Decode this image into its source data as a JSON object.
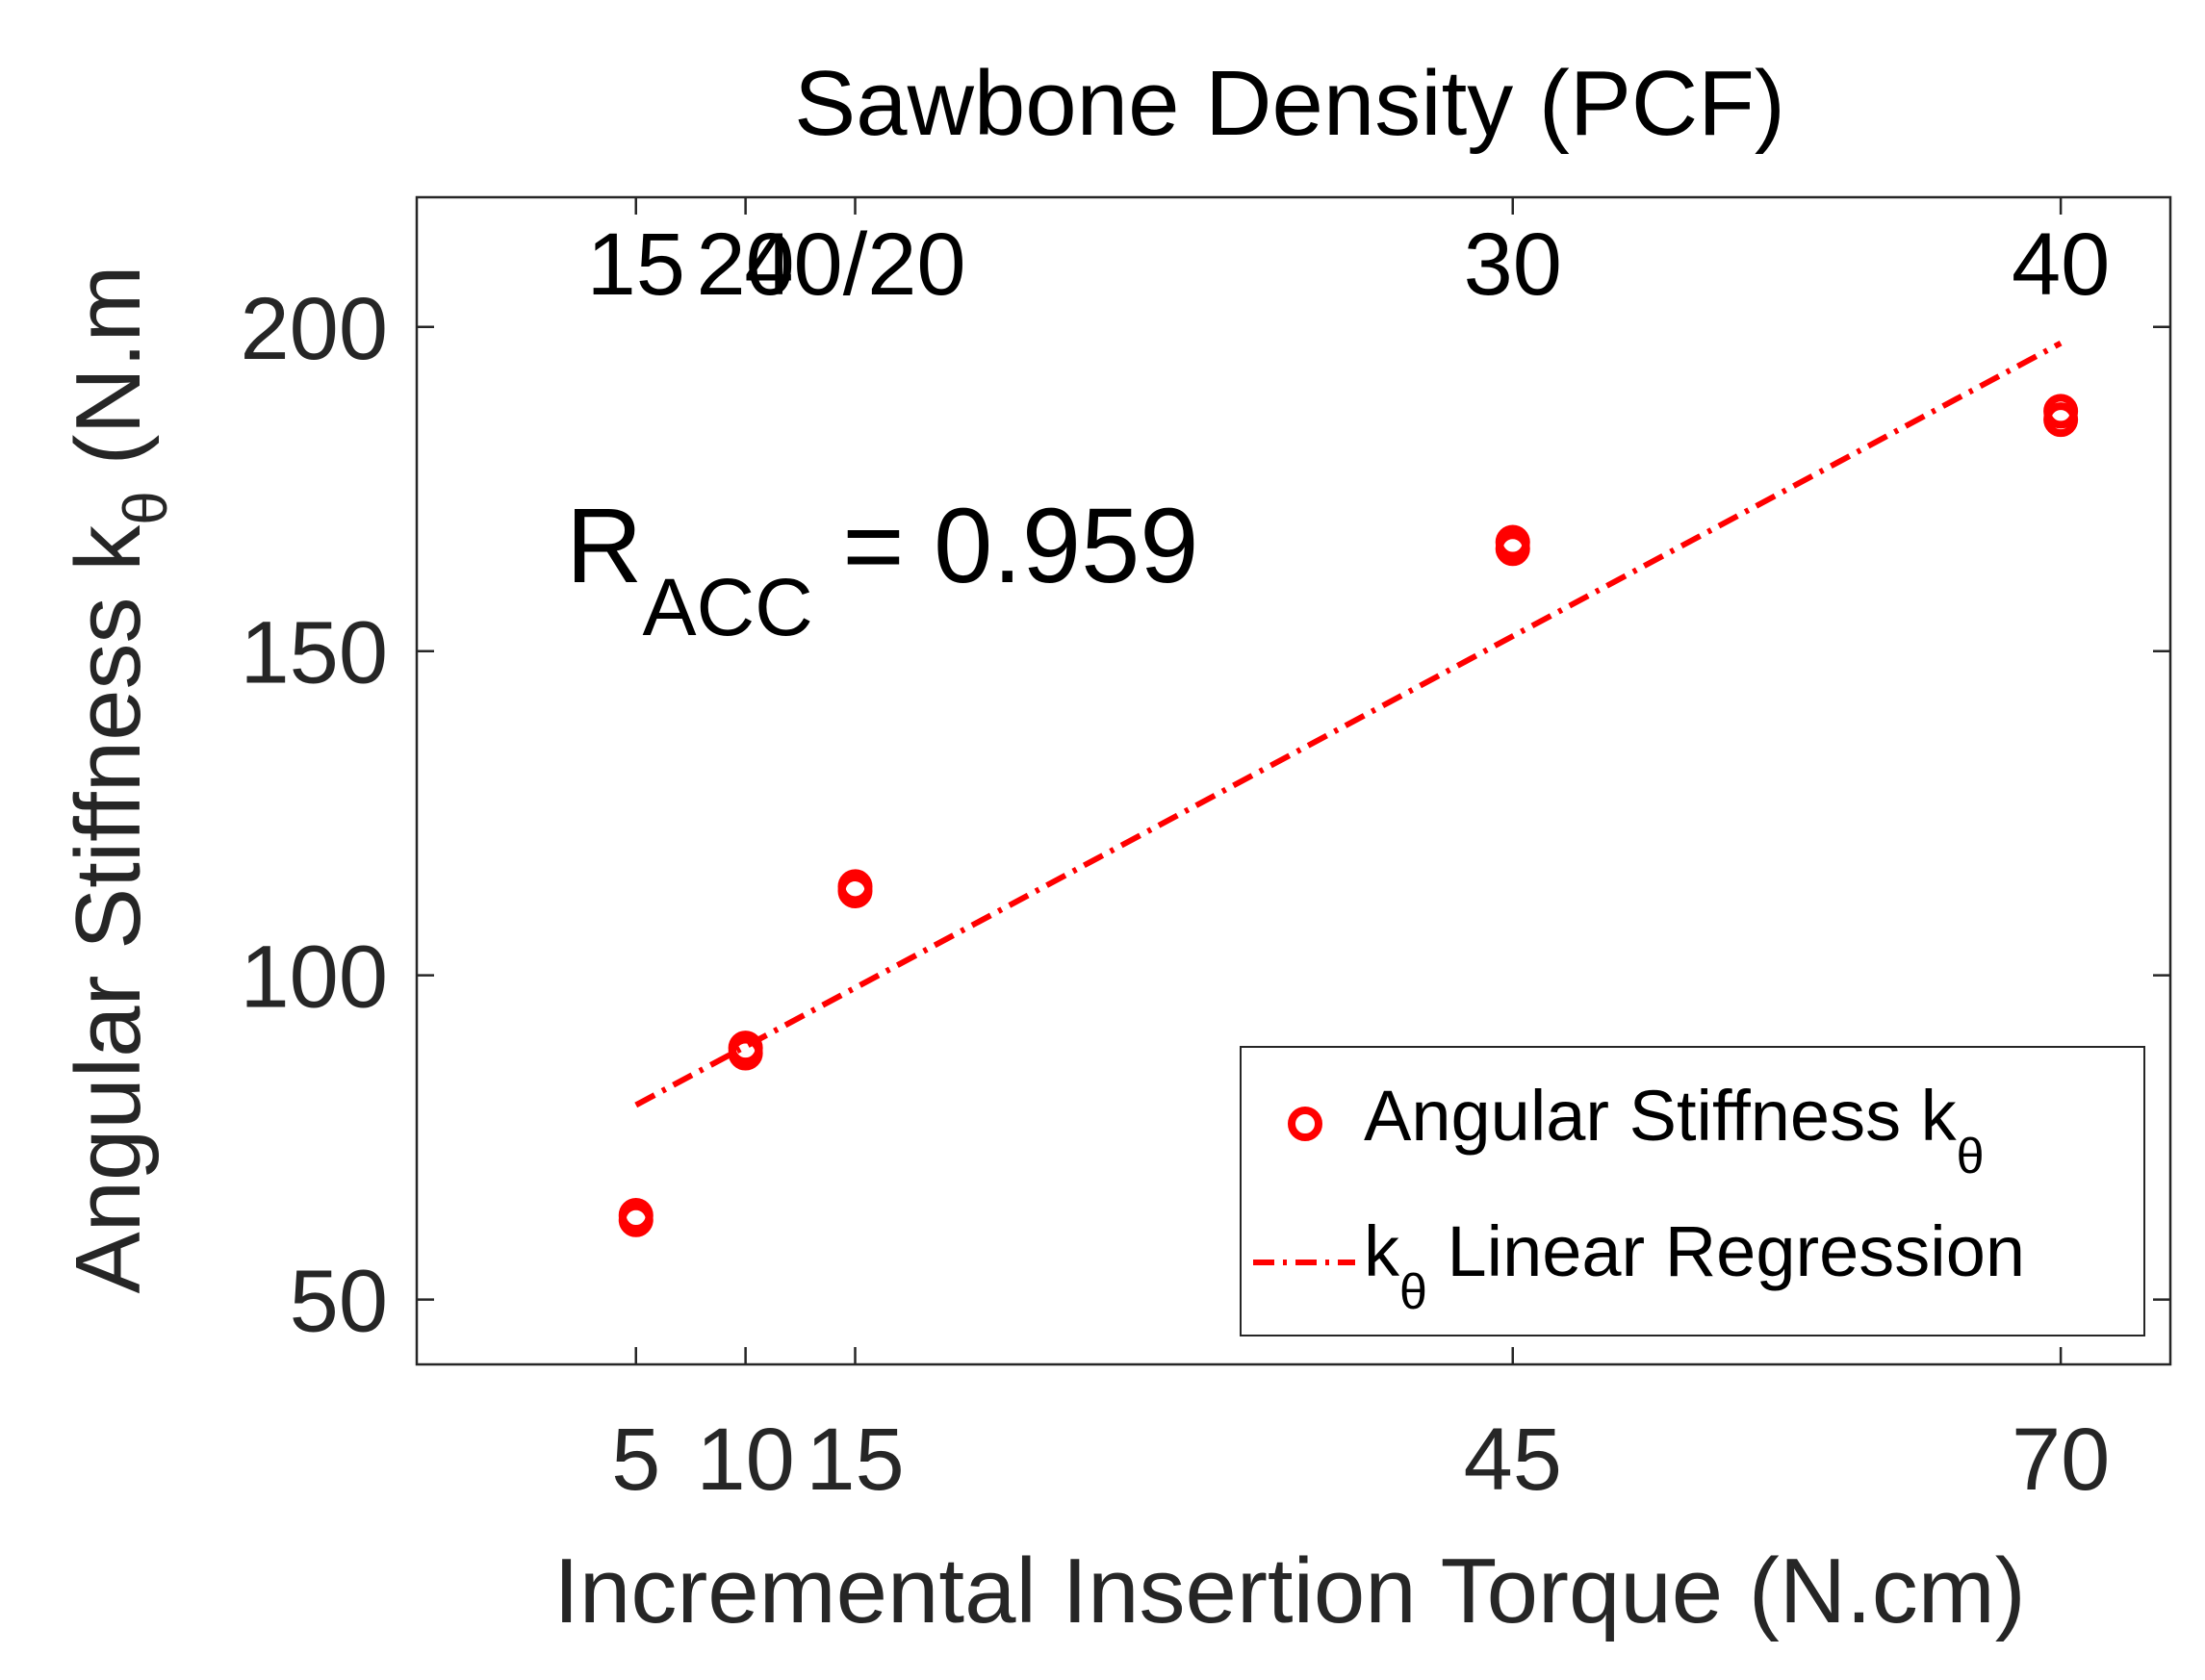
{
  "chart_data": {
    "type": "scatter",
    "title": "Sawbone Density (PCF)",
    "xlabel": "Incremental Insertion Torque (N.cm)",
    "ylabel": {
      "main": "Angular Stiffness k",
      "sub": "θ",
      "suffix": " (N.m"
    },
    "xlim": [
      -5,
      75
    ],
    "ylim": [
      40,
      220
    ],
    "x_ticks": [
      5,
      10,
      15,
      45,
      70
    ],
    "x_tick_labels": [
      "5",
      "10",
      "15",
      "45",
      "70"
    ],
    "y_ticks": [
      50,
      100,
      150,
      200
    ],
    "y_tick_labels": [
      "50",
      "100",
      "150",
      "200"
    ],
    "top_axis": {
      "tick_positions": [
        5,
        10,
        15,
        45,
        70
      ],
      "tick_labels": [
        "15",
        "20",
        "40/20",
        "30",
        "40"
      ]
    },
    "series": [
      {
        "name": "Angular Stiffness k",
        "name_sub": "θ",
        "kind": "scatter",
        "marker": "open-circle",
        "color": "#ff0000",
        "points": [
          {
            "x": 5,
            "y": 62.3
          },
          {
            "x": 5,
            "y": 63.0
          },
          {
            "x": 10,
            "y": 88.0
          },
          {
            "x": 10,
            "y": 88.8
          },
          {
            "x": 15,
            "y": 113.0
          },
          {
            "x": 15,
            "y": 113.7
          },
          {
            "x": 45,
            "y": 165.8
          },
          {
            "x": 45,
            "y": 166.8
          },
          {
            "x": 70,
            "y": 185.7
          },
          {
            "x": 70,
            "y": 187.0
          }
        ]
      },
      {
        "name_prefix": "k",
        "name_sub": "θ",
        "name": " Linear Regression",
        "kind": "line",
        "line_style": "dash-dot",
        "color": "#ff0000",
        "points": [
          {
            "x": 5,
            "y": 80
          },
          {
            "x": 70,
            "y": 197.5
          }
        ]
      }
    ],
    "annotation": {
      "main": "R",
      "sub": "ACC",
      "rest": " = 0.959"
    },
    "legend_position": "bottom-right",
    "grid": false
  }
}
